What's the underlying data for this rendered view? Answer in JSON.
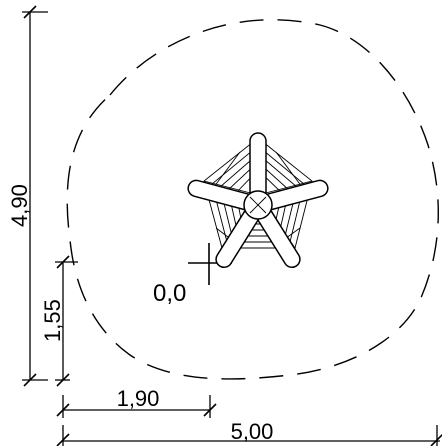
{
  "drawing": {
    "origin_label": "0,0",
    "dimensions": {
      "total_height": "4,90",
      "offset_height": "1,55",
      "offset_width": "1,90",
      "total_width": "5,00"
    }
  }
}
